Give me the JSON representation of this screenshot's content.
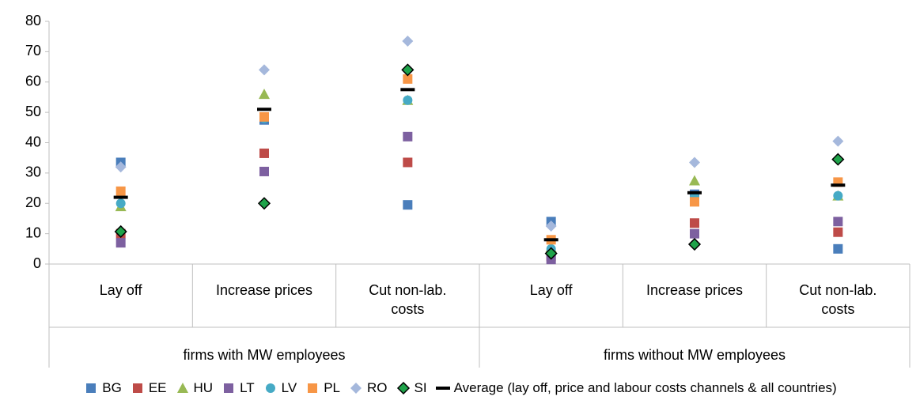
{
  "chart_data": {
    "type": "scatter",
    "categories": [
      "Lay off",
      "Increase prices",
      "Cut non-lab. costs",
      "Lay off",
      "Increase prices",
      "Cut non-lab. costs"
    ],
    "groups": [
      "firms with MW employees",
      "firms without MW employees"
    ],
    "ylim": [
      0,
      80
    ],
    "yticks": [
      0,
      10,
      20,
      30,
      40,
      50,
      60,
      70,
      80
    ],
    "series": [
      {
        "name": "BG",
        "color": "#4a7ebb",
        "marker": "square",
        "values": [
          33.5,
          47.5,
          19.5,
          14,
          23,
          5
        ]
      },
      {
        "name": "EE",
        "color": "#be4b48",
        "marker": "square",
        "values": [
          10,
          36.5,
          33.5,
          2.5,
          13.5,
          10.5
        ]
      },
      {
        "name": "HU",
        "color": "#98b954",
        "marker": "triangle",
        "values": [
          19,
          56,
          54,
          5.5,
          27.5,
          22.5
        ]
      },
      {
        "name": "LT",
        "color": "#7d60a0",
        "marker": "square",
        "values": [
          7,
          30.5,
          42,
          1.5,
          10,
          14
        ]
      },
      {
        "name": "LV",
        "color": "#46aac5",
        "marker": "circle",
        "values": [
          20,
          48,
          54,
          5,
          22,
          22.5
        ]
      },
      {
        "name": "PL",
        "color": "#f79646",
        "marker": "square",
        "values": [
          24,
          48.5,
          61,
          8,
          20.5,
          27
        ]
      },
      {
        "name": "RO",
        "color": "#a5b8dc",
        "marker": "diamond",
        "values": [
          32,
          64,
          73.5,
          12.5,
          33.5,
          40.5
        ]
      },
      {
        "name": "SI",
        "color": "#1fa34a",
        "marker": "diamond-outline",
        "values": [
          10.7,
          20,
          64,
          3.5,
          6.5,
          34.5
        ]
      },
      {
        "name": "Average (lay off, price and labour costs channels & all countries)",
        "color": "#000000",
        "marker": "dash",
        "values": [
          22,
          51,
          57.5,
          8,
          23.5,
          26
        ]
      }
    ]
  }
}
